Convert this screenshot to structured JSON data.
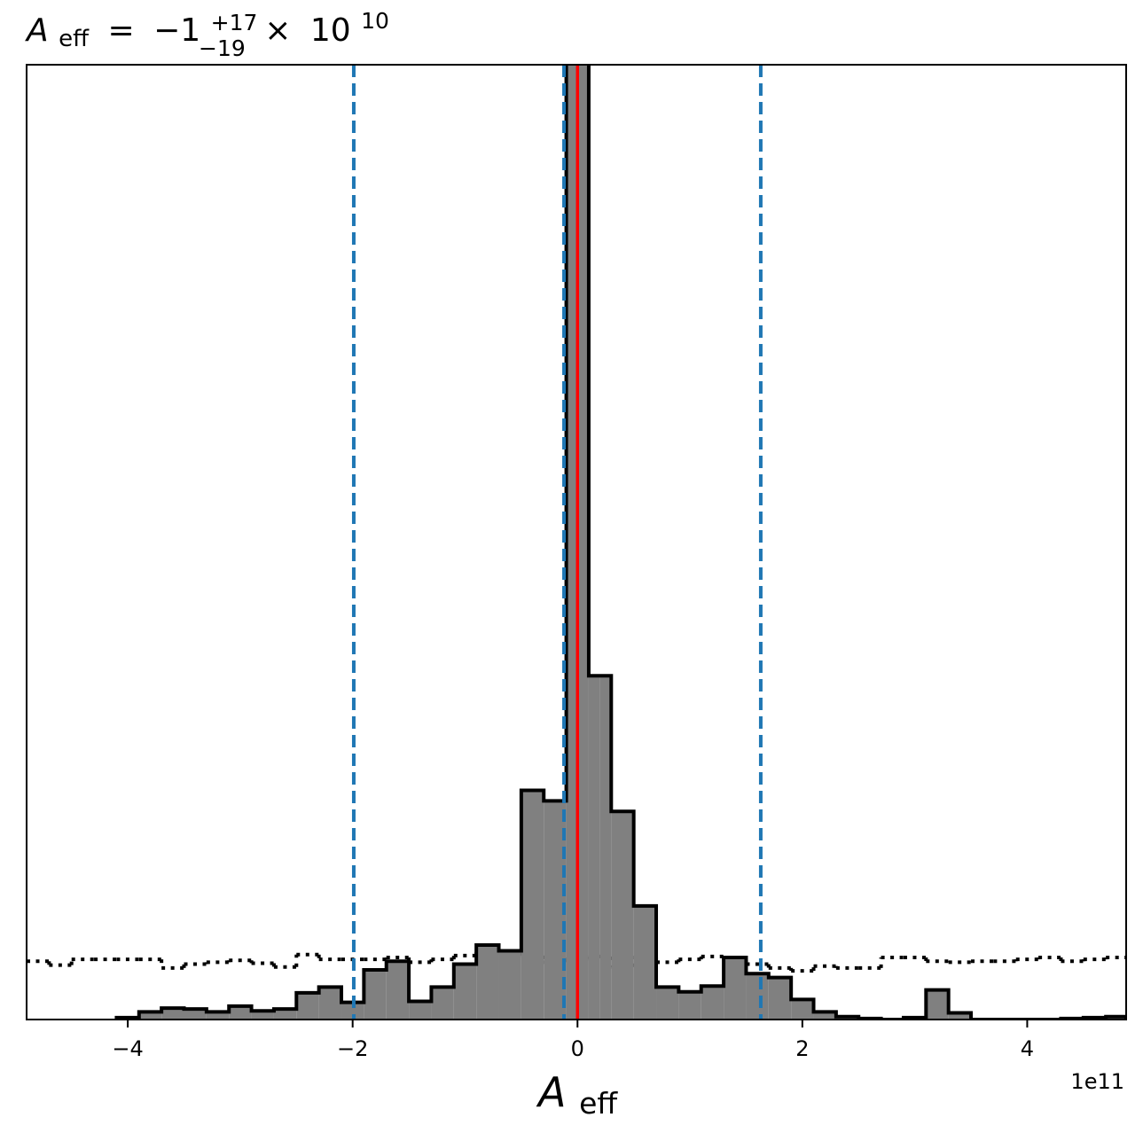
{
  "chart_data": {
    "type": "histogram",
    "title": {
      "symbol": "A",
      "symbol_sub": "eff",
      "equals": "=",
      "value": "−1",
      "upper_err": "+17",
      "lower_err": "−19",
      "times": "×",
      "base": "10",
      "exponent": "10"
    },
    "xlabel": {
      "symbol": "A",
      "sub": "eff"
    },
    "x_offset_label": "1e11",
    "xlim": [
      -4.9,
      4.88
    ],
    "ylim": [
      0,
      1.0
    ],
    "x_scale_factor": 100000000000.0,
    "xticks": [
      {
        "value": -4,
        "label": "−4"
      },
      {
        "value": -2,
        "label": "−2"
      },
      {
        "value": 0,
        "label": "0"
      },
      {
        "value": 2,
        "label": "2"
      },
      {
        "value": 4,
        "label": "4"
      }
    ],
    "yticks_shown": false,
    "colors": {
      "hist_fill": "#808080",
      "hist_edge": "#000000",
      "quantile_lines": "#1f77b4",
      "truth_line": "#ff0000",
      "prior": "#000000"
    },
    "posterior_histogram": {
      "bin_edges": [
        -4.1,
        -3.9,
        -3.7,
        -3.5,
        -3.3,
        -3.1,
        -2.9,
        -2.7,
        -2.5,
        -2.3,
        -2.1,
        -1.9,
        -1.7,
        -1.5,
        -1.3,
        -1.1,
        -0.9,
        -0.7,
        -0.5,
        -0.3,
        -0.1,
        0.0,
        0.1,
        0.2,
        0.3,
        0.5,
        0.7,
        0.9,
        1.1,
        1.3,
        1.5,
        1.7,
        1.9,
        2.1,
        2.3,
        2.5,
        2.7,
        2.9,
        3.1,
        3.3,
        3.5,
        3.7,
        3.9,
        4.1,
        4.3,
        4.5,
        4.7,
        4.88
      ],
      "counts": [
        0.002,
        0.008,
        0.012,
        0.011,
        0.008,
        0.014,
        0.009,
        0.011,
        0.028,
        0.034,
        0.018,
        0.052,
        0.061,
        0.019,
        0.034,
        0.058,
        0.078,
        0.072,
        0.24,
        0.229,
        1.2,
        1.2,
        0.36,
        0.36,
        0.218,
        0.119,
        0.034,
        0.029,
        0.035,
        0.065,
        0.048,
        0.044,
        0.021,
        0.008,
        0.003,
        0.001,
        0.0,
        0.002,
        0.031,
        0.007,
        0.0,
        0.0,
        0.0,
        0.0,
        0.001,
        0.002,
        0.003
      ]
    },
    "prior_histogram": {
      "bin_edges": [
        -4.9,
        -4.7,
        -4.5,
        -4.3,
        -4.1,
        -3.9,
        -3.7,
        -3.5,
        -3.3,
        -3.1,
        -2.9,
        -2.7,
        -2.5,
        -2.3,
        -2.1,
        -1.9,
        -1.7,
        -1.5,
        -1.3,
        -1.1,
        -0.9,
        -0.7,
        -0.5,
        -0.3,
        -0.1,
        0.1,
        0.3,
        0.5,
        0.7,
        0.9,
        1.1,
        1.3,
        1.5,
        1.7,
        1.9,
        2.1,
        2.3,
        2.5,
        2.7,
        2.9,
        3.1,
        3.3,
        3.5,
        3.7,
        3.9,
        4.1,
        4.3,
        4.5,
        4.7,
        4.88
      ],
      "counts": [
        0.061,
        0.057,
        0.063,
        0.063,
        0.063,
        0.063,
        0.054,
        0.058,
        0.06,
        0.062,
        0.059,
        0.055,
        0.068,
        0.063,
        0.063,
        0.063,
        0.065,
        0.06,
        0.063,
        0.067,
        0.072,
        0.07,
        0.067,
        0.06,
        0.063,
        0.066,
        0.055,
        0.065,
        0.06,
        0.063,
        0.066,
        0.062,
        0.058,
        0.054,
        0.051,
        0.056,
        0.054,
        0.054,
        0.065,
        0.065,
        0.061,
        0.06,
        0.061,
        0.061,
        0.063,
        0.065,
        0.061,
        0.063,
        0.065
      ]
    },
    "quantile_lines_x": [
      -1.99,
      -0.12,
      1.63
    ],
    "truth_line_x": 0.0
  }
}
